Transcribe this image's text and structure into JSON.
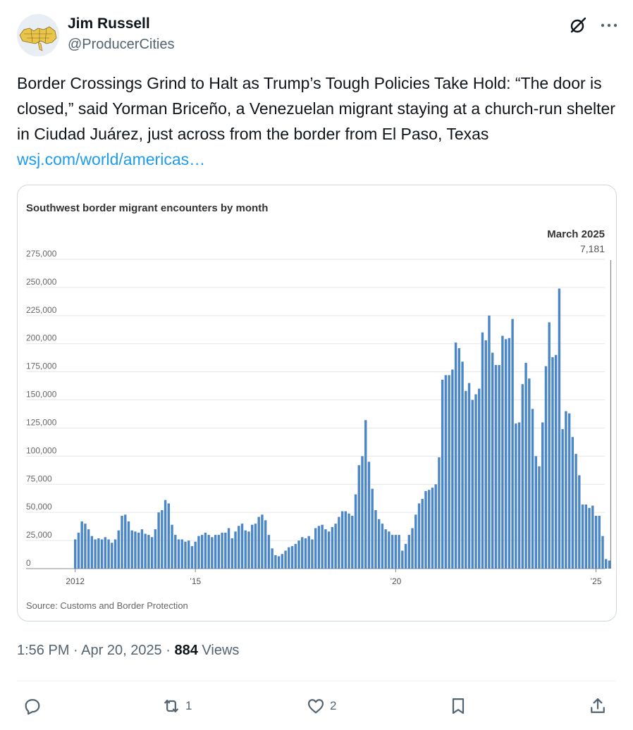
{
  "author": {
    "name": "Jim Russell",
    "handle": "@ProducerCities"
  },
  "tweet": {
    "text": "Border Crossings Grind to Halt as Trump’s Tough Policies Take Hold: “The door is closed,” said Yorman Briceño, a Venezuelan migrant staying at a church-run shelter in Ciudad Juárez, just across from the border from El Paso, Texas ",
    "link": "wsj.com/world/americas…"
  },
  "meta": {
    "time": "1:56 PM · Apr 20, 2025 · ",
    "views_count": "884",
    "views_label": " Views"
  },
  "actions": {
    "reply_count": "",
    "repost_count": "1",
    "like_count": "2"
  },
  "icons": [
    "grok-icon",
    "more-icon",
    "reply-icon",
    "repost-icon",
    "like-icon",
    "bookmark-icon",
    "share-icon"
  ],
  "colors": {
    "link": "#1d9bf0",
    "bar": "#4a86c8",
    "text_secondary": "#536471"
  },
  "chart_data": {
    "type": "bar",
    "title": "Southwest border migrant encounters by month",
    "source": "Source: Customs and Border Protection",
    "x_tick_labels": [
      "2012",
      "’15",
      "’20",
      "’25"
    ],
    "y_tick_labels": [
      "0",
      "25,000",
      "50,000",
      "75,000",
      "100,000",
      "125,000",
      "150,000",
      "175,000",
      "200,000",
      "225,000",
      "250,000",
      "275,000"
    ],
    "ylim": [
      0,
      275000
    ],
    "annotation": {
      "label": "March 2025",
      "value": "7,181"
    },
    "start": "2012-01",
    "values": [
      26000,
      32000,
      42000,
      40000,
      35000,
      29000,
      26000,
      27000,
      26000,
      28000,
      26000,
      23000,
      26000,
      34000,
      47000,
      48000,
      42000,
      34000,
      33000,
      32000,
      35000,
      31000,
      30000,
      28000,
      35000,
      50000,
      52000,
      61000,
      58000,
      39000,
      30000,
      26000,
      26000,
      24000,
      25000,
      20000,
      24000,
      29000,
      30000,
      32000,
      30000,
      28000,
      30000,
      30000,
      32000,
      32000,
      36000,
      27000,
      33000,
      38000,
      40000,
      34000,
      33000,
      39000,
      40000,
      46000,
      48000,
      43000,
      30000,
      18000,
      12000,
      11000,
      13000,
      16000,
      19000,
      20000,
      22000,
      25000,
      28000,
      27000,
      29000,
      26000,
      36000,
      38000,
      39000,
      35000,
      33000,
      37000,
      40000,
      46000,
      51000,
      51000,
      49000,
      47000,
      66000,
      92000,
      100000,
      132000,
      95000,
      71000,
      52000,
      44000,
      40000,
      35000,
      33000,
      30000,
      30000,
      30000,
      16000,
      22000,
      30000,
      36000,
      48000,
      58000,
      62000,
      69000,
      70000,
      72000,
      75000,
      99000,
      168000,
      172000,
      172000,
      177000,
      201000,
      196000,
      184000,
      158000,
      165000,
      150000,
      155000,
      160000,
      210000,
      203000,
      225000,
      192000,
      181000,
      181000,
      207000,
      204000,
      205000,
      222000,
      129000,
      130000,
      164000,
      183000,
      169000,
      142000,
      100000,
      91000,
      130000,
      180000,
      219000,
      188000,
      190000,
      249000,
      124000,
      140000,
      138000,
      117000,
      102000,
      83000,
      57000,
      57000,
      54000,
      56000,
      47000,
      47000,
      29000,
      8500,
      7181
    ]
  }
}
